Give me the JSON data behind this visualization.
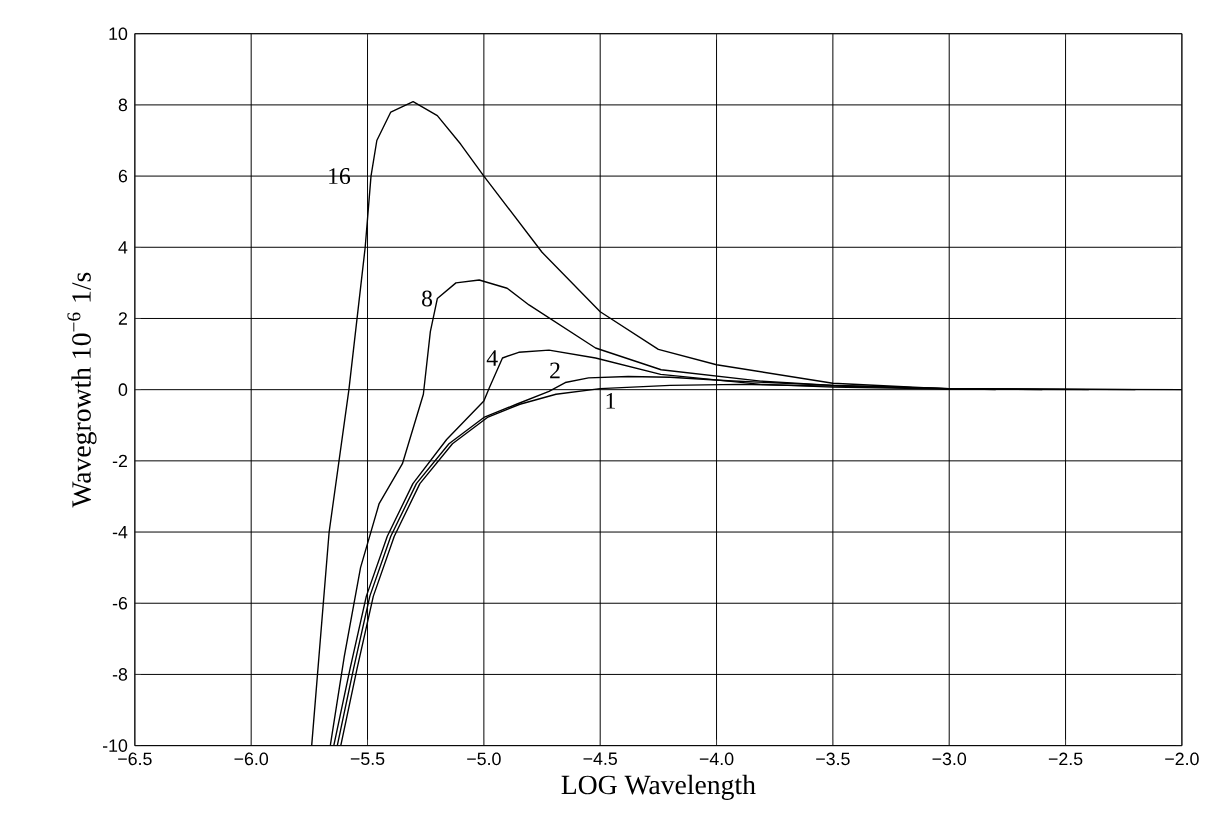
{
  "chart_data": {
    "type": "line",
    "xlabel": "LOG Wavelength",
    "ylabel": "Wavegrowth 10$^{−6}$ 1/s",
    "xlim": [
      -6.5,
      -2.0
    ],
    "ylim": [
      -10,
      10
    ],
    "xticks": [
      {
        "value": -6.5,
        "label": "−6.5"
      },
      {
        "value": -6.0,
        "label": "−6.0"
      },
      {
        "value": -5.5,
        "label": "−5.5"
      },
      {
        "value": -5.0,
        "label": "−5.0"
      },
      {
        "value": -4.5,
        "label": "−4.5"
      },
      {
        "value": -4.0,
        "label": "−4.0"
      },
      {
        "value": -3.5,
        "label": "−3.5"
      },
      {
        "value": -3.0,
        "label": "−3.0"
      },
      {
        "value": -2.5,
        "label": "−2.5"
      },
      {
        "value": -2.0,
        "label": "−2.0"
      }
    ],
    "yticks": [
      -10,
      -8,
      -6,
      -4,
      -2,
      0,
      2,
      4,
      6,
      8,
      10
    ],
    "grid": true,
    "legend": false,
    "marker": "none",
    "line_style": "solid",
    "series": [
      {
        "name": "16",
        "color": "#000000",
        "x": [
          -5.74,
          -5.665,
          -5.58,
          -5.51,
          -5.485,
          -5.46,
          -5.4,
          -5.304,
          -5.2,
          -5.1,
          -5.0,
          -4.75,
          -4.5,
          -4.25,
          -4.0,
          -3.5,
          -3.0,
          -2.0
        ],
        "values": [
          -10,
          -4,
          0,
          4,
          6,
          7,
          7.8,
          8.09,
          7.7,
          6.9,
          6.0,
          3.86,
          2.19,
          1.13,
          0.7,
          0.18,
          0.02,
          0
        ]
      },
      {
        "name": "8",
        "color": "#000000",
        "x": [
          -5.66,
          -5.6,
          -5.53,
          -5.45,
          -5.35,
          -5.26,
          -5.23,
          -5.2,
          -5.12,
          -5.02,
          -4.9,
          -4.806,
          -4.52,
          -4.238,
          -3.81,
          -3.5,
          -3.0,
          -2.2
        ],
        "values": [
          -10,
          -7.5,
          -5,
          -3.2,
          -2.08,
          -0.13,
          1.63,
          2.56,
          3.0,
          3.08,
          2.85,
          2.38,
          1.17,
          0.56,
          0.24,
          0.12,
          0.03,
          0
        ]
      },
      {
        "name": "4",
        "color": "#000000",
        "x": [
          -5.645,
          -5.575,
          -5.505,
          -5.415,
          -5.305,
          -5.16,
          -5.0,
          -4.976,
          -4.92,
          -4.85,
          -4.72,
          -4.52,
          -4.24,
          -3.81,
          -3.5,
          -3.0,
          -2.4
        ],
        "values": [
          -10,
          -7.84,
          -5.8,
          -4.12,
          -2.64,
          -1.4,
          -0.32,
          0.06,
          0.89,
          1.05,
          1.11,
          0.89,
          0.43,
          0.15,
          0.07,
          0.02,
          0
        ]
      },
      {
        "name": "2",
        "color": "#000000",
        "x": [
          -5.63,
          -5.56,
          -5.49,
          -5.4,
          -5.29,
          -5.15,
          -5.0,
          -4.86,
          -4.72,
          -4.65,
          -4.55,
          -4.38,
          -4.2,
          -3.95,
          -3.5,
          -3.0,
          -2.6
        ],
        "values": [
          -10,
          -7.84,
          -5.8,
          -4.12,
          -2.64,
          -1.52,
          -0.78,
          -0.41,
          -0.05,
          0.2,
          0.33,
          0.37,
          0.35,
          0.25,
          0.12,
          0.03,
          0
        ]
      },
      {
        "name": "1",
        "color": "#000000",
        "x": [
          -5.615,
          -5.545,
          -5.475,
          -5.385,
          -5.275,
          -5.135,
          -4.985,
          -4.845,
          -4.69,
          -4.5,
          -4.2,
          -3.9,
          -3.5,
          -3.0,
          -2.8
        ],
        "values": [
          -10,
          -7.84,
          -5.8,
          -4.12,
          -2.64,
          -1.52,
          -0.78,
          -0.41,
          -0.13,
          0.03,
          0.12,
          0.15,
          0.1,
          0.03,
          0
        ]
      }
    ]
  }
}
